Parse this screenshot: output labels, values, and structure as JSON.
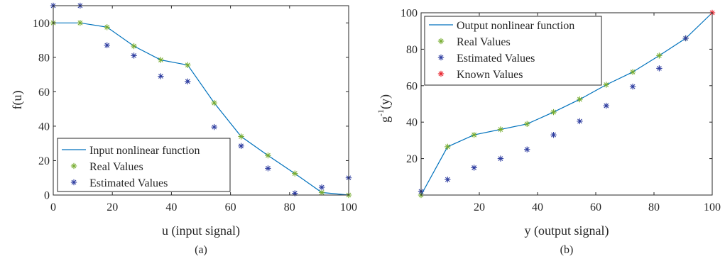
{
  "colors": {
    "line": "#0072BD",
    "real": "#77AC30",
    "estimated": "#2E3DA0",
    "known": "#E8202A",
    "axis": "#262626"
  },
  "chart_data": [
    {
      "type": "line",
      "caption": "(a)",
      "xlabel": "u (input signal)",
      "ylabel": "f(u)",
      "xlim": [
        0,
        100
      ],
      "ylim": [
        0,
        110
      ],
      "xticks": [
        0,
        20,
        40,
        60,
        80,
        100
      ],
      "yticks": [
        0,
        20,
        40,
        60,
        80,
        100
      ],
      "legend_position": "bottom-left",
      "series": [
        {
          "name": "Input nonlinear function",
          "kind": "line",
          "x": [
            0,
            9.1,
            18.2,
            27.3,
            36.4,
            45.5,
            54.5,
            63.6,
            72.7,
            81.8,
            90.9,
            100
          ],
          "y": [
            100,
            100,
            97.5,
            86.5,
            78.5,
            75.5,
            53.5,
            34,
            23,
            12.5,
            1.5,
            0
          ]
        },
        {
          "name": "Real Values",
          "kind": "marker",
          "x": [
            0,
            9.1,
            18.2,
            27.3,
            36.4,
            45.5,
            54.5,
            63.6,
            72.7,
            81.8,
            90.9,
            100
          ],
          "y": [
            100,
            100,
            97.5,
            86.5,
            78.5,
            75.5,
            53.5,
            34,
            23,
            12.5,
            1.5,
            0
          ]
        },
        {
          "name": "Estimated Values",
          "kind": "marker",
          "x": [
            0,
            9.1,
            18.2,
            27.3,
            36.4,
            45.5,
            54.5,
            63.6,
            72.7,
            81.8,
            90.9,
            100
          ],
          "y": [
            110,
            110,
            87,
            81,
            69,
            66,
            39.5,
            28.5,
            15.5,
            1,
            4.5,
            10
          ]
        }
      ]
    },
    {
      "type": "line",
      "caption": "(b)",
      "xlabel": "y (output signal)",
      "ylabel": "g",
      "ylabel_sup": "-1",
      "ylabel_suffix": "(y)",
      "xlim": [
        0,
        100
      ],
      "ylim": [
        0,
        100
      ],
      "xticks": [
        20,
        40,
        60,
        80,
        100
      ],
      "yticks": [
        20,
        40,
        60,
        80,
        100
      ],
      "legend_position": "top-left",
      "series": [
        {
          "name": "Output nonlinear function",
          "kind": "line",
          "x": [
            0,
            9.1,
            18.2,
            27.3,
            36.4,
            45.5,
            54.5,
            63.6,
            72.7,
            81.8,
            90.9,
            100
          ],
          "y": [
            0,
            26.5,
            33,
            36,
            39,
            45.5,
            52.5,
            60.5,
            67.5,
            76.5,
            86,
            100
          ]
        },
        {
          "name": "Real Values",
          "kind": "marker",
          "x": [
            0,
            9.1,
            18.2,
            27.3,
            36.4,
            45.5,
            54.5,
            63.6,
            72.7,
            81.8,
            90.9
          ],
          "y": [
            0,
            26.5,
            33,
            36,
            39,
            45.5,
            52.5,
            60.5,
            67.5,
            76.5,
            86
          ]
        },
        {
          "name": "Estimated Values",
          "kind": "marker",
          "x": [
            0,
            9.1,
            18.2,
            27.3,
            36.4,
            45.5,
            54.5,
            63.6,
            72.7,
            81.8,
            90.9
          ],
          "y": [
            2,
            8.5,
            15,
            20,
            25,
            33,
            40.5,
            49,
            59.5,
            69.5,
            86
          ]
        },
        {
          "name": "Known Values",
          "kind": "marker",
          "x": [
            100
          ],
          "y": [
            100
          ]
        }
      ]
    }
  ]
}
